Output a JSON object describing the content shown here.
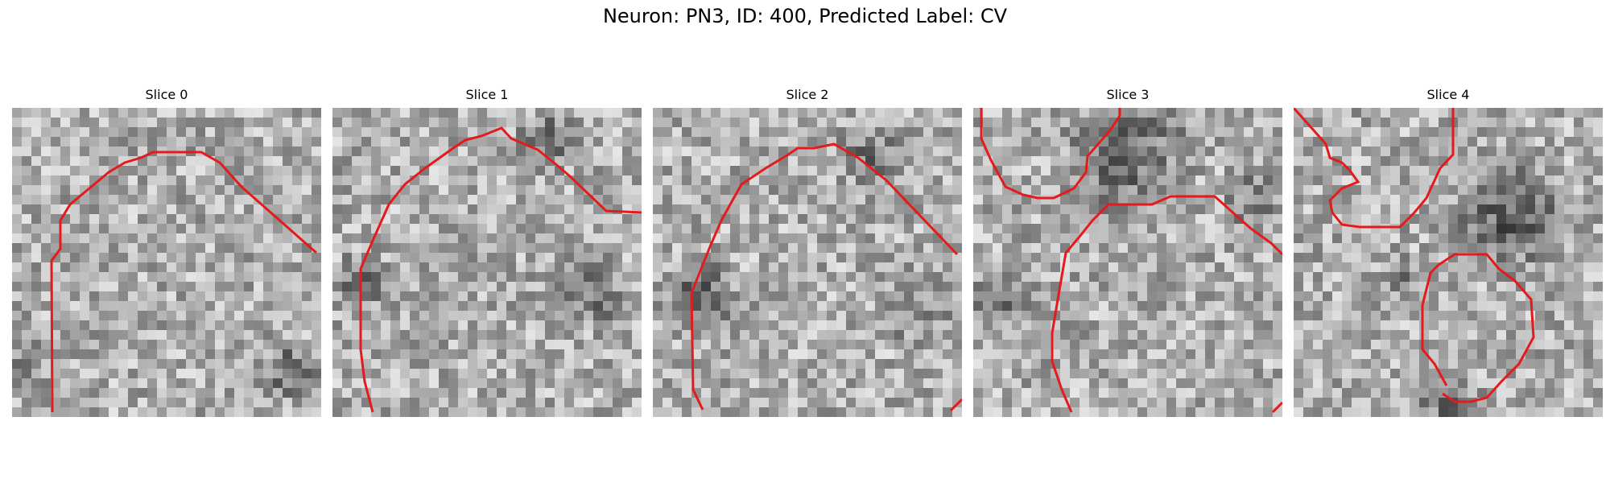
{
  "figure": {
    "title": "Neuron: PN3, ID: 400, Predicted Label: CV",
    "panels": [
      {
        "title": "Slice 0"
      },
      {
        "title": "Slice 1"
      },
      {
        "title": "Slice 2"
      },
      {
        "title": "Slice 3"
      },
      {
        "title": "Slice 4"
      }
    ],
    "contour_color": "#e41a1c",
    "colormap": "grayscale"
  }
}
